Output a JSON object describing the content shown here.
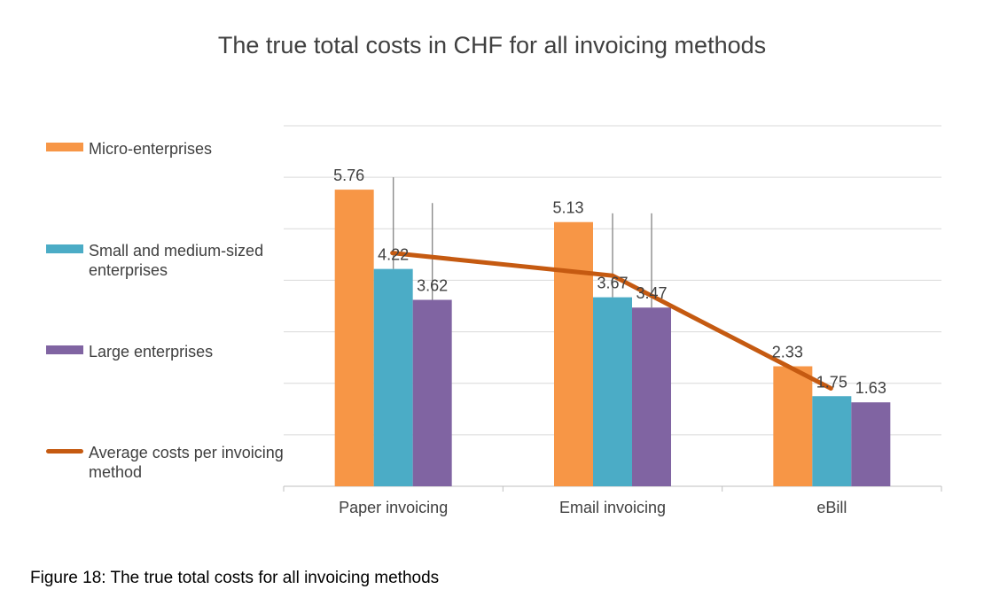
{
  "chart_data": {
    "type": "bar",
    "title": "The true total costs in CHF for all invoicing methods",
    "categories": [
      "Paper invoicing",
      "Email invoicing",
      "eBill"
    ],
    "series": [
      {
        "name": "Micro-enterprises",
        "values": [
          5.76,
          5.13,
          2.33
        ],
        "color": "#f79646"
      },
      {
        "name": "Small and medium-sized enterprises",
        "values": [
          4.22,
          3.67,
          1.75
        ],
        "color": "#4bacc6"
      },
      {
        "name": "Large enterprises",
        "values": [
          3.62,
          3.47,
          1.63
        ],
        "color": "#8064a2"
      }
    ],
    "average_line": {
      "name": "Average costs per invoicing method",
      "values": [
        4.53,
        4.09,
        1.9
      ],
      "color": "#c55a11"
    },
    "error_bars": {
      "series_index": [
        1,
        2
      ],
      "upper": [
        [
          6.0,
          5.3
        ],
        [
          5.5,
          5.3
        ]
      ]
    },
    "ylim": [
      0,
      7
    ],
    "grid": true,
    "legend_position": "left",
    "xlabel": "",
    "ylabel": ""
  },
  "legend": {
    "items": [
      {
        "label": "Micro-enterprises"
      },
      {
        "label": "Small and medium-sized enterprises"
      },
      {
        "label": "Large enterprises"
      },
      {
        "label": "Average costs per invoicing method"
      }
    ]
  },
  "caption": "Figure 18: The true total costs for all invoicing methods"
}
